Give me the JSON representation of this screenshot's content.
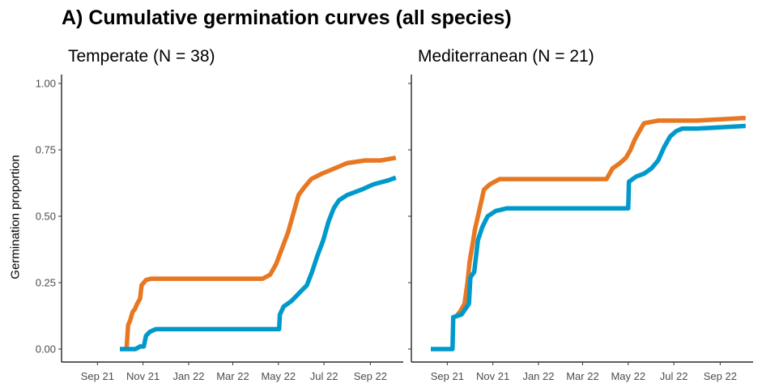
{
  "title": "A) Cumulative germination curves (all species)",
  "chart_data": {
    "type": "line",
    "title": "A) Cumulative germination curves (all species)",
    "ylabel": "Germination proportion",
    "xlabel": "",
    "ylim": [
      0,
      1.0
    ],
    "yticks": [
      0.0,
      0.25,
      0.5,
      0.75,
      1.0
    ],
    "ytick_labels": [
      "0.00",
      "0.25",
      "0.50",
      "0.75",
      "1.00"
    ],
    "xticks": [
      "2021-09-01",
      "2021-11-01",
      "2022-01-01",
      "2022-03-01",
      "2022-05-01",
      "2022-07-01",
      "2022-09-01"
    ],
    "xtick_labels": [
      "Sep 21",
      "Nov 21",
      "Jan 22",
      "Mar 22",
      "May 22",
      "Jul 22",
      "Sep 22"
    ],
    "xlim": [
      "2021-07-15",
      "2022-10-15"
    ],
    "grid": false,
    "series_colors": [
      "#E87722",
      "#0099CC"
    ],
    "panels": [
      {
        "title": "Temperate (N = 38)",
        "series": [
          {
            "color": "#E87722",
            "points": [
              [
                "2021-10-10",
                0.0
              ],
              [
                "2021-10-12",
                0.09
              ],
              [
                "2021-10-15",
                0.11
              ],
              [
                "2021-10-18",
                0.14
              ],
              [
                "2021-10-21",
                0.15
              ],
              [
                "2021-10-24",
                0.17
              ],
              [
                "2021-10-28",
                0.19
              ],
              [
                "2021-10-30",
                0.24
              ],
              [
                "2021-11-05",
                0.26
              ],
              [
                "2021-11-12",
                0.265
              ],
              [
                "2022-04-10",
                0.265
              ],
              [
                "2022-04-20",
                0.28
              ],
              [
                "2022-04-28",
                0.32
              ],
              [
                "2022-05-06",
                0.38
              ],
              [
                "2022-05-14",
                0.44
              ],
              [
                "2022-05-22",
                0.52
              ],
              [
                "2022-05-28",
                0.58
              ],
              [
                "2022-06-05",
                0.61
              ],
              [
                "2022-06-14",
                0.64
              ],
              [
                "2022-06-28",
                0.66
              ],
              [
                "2022-07-15",
                0.68
              ],
              [
                "2022-08-01",
                0.7
              ],
              [
                "2022-08-25",
                0.71
              ],
              [
                "2022-09-15",
                0.71
              ],
              [
                "2022-10-05",
                0.72
              ]
            ]
          },
          {
            "color": "#0099CC",
            "points": [
              [
                "2021-10-01",
                0.0
              ],
              [
                "2021-10-22",
                0.0
              ],
              [
                "2021-10-28",
                0.01
              ],
              [
                "2021-11-02",
                0.01
              ],
              [
                "2021-11-05",
                0.05
              ],
              [
                "2021-11-10",
                0.065
              ],
              [
                "2021-11-18",
                0.075
              ],
              [
                "2022-05-02",
                0.075
              ],
              [
                "2022-05-03",
                0.13
              ],
              [
                "2022-05-08",
                0.16
              ],
              [
                "2022-05-18",
                0.18
              ],
              [
                "2022-05-25",
                0.2
              ],
              [
                "2022-06-01",
                0.22
              ],
              [
                "2022-06-08",
                0.24
              ],
              [
                "2022-06-15",
                0.29
              ],
              [
                "2022-06-22",
                0.35
              ],
              [
                "2022-06-30",
                0.41
              ],
              [
                "2022-07-07",
                0.48
              ],
              [
                "2022-07-14",
                0.53
              ],
              [
                "2022-07-21",
                0.56
              ],
              [
                "2022-08-01",
                0.58
              ],
              [
                "2022-08-20",
                0.6
              ],
              [
                "2022-09-05",
                0.62
              ],
              [
                "2022-09-25",
                0.635
              ],
              [
                "2022-10-05",
                0.645
              ]
            ]
          }
        ]
      },
      {
        "title": "Mediterranean (N = 21)",
        "series": [
          {
            "color": "#E87722",
            "points": [
              [
                "2021-09-12",
                0.12
              ],
              [
                "2021-09-18",
                0.14
              ],
              [
                "2021-09-24",
                0.17
              ],
              [
                "2021-09-28",
                0.25
              ],
              [
                "2021-10-01",
                0.33
              ],
              [
                "2021-10-04",
                0.38
              ],
              [
                "2021-10-08",
                0.45
              ],
              [
                "2021-10-12",
                0.5
              ],
              [
                "2021-10-16",
                0.55
              ],
              [
                "2021-10-20",
                0.6
              ],
              [
                "2021-10-28",
                0.62
              ],
              [
                "2021-11-10",
                0.64
              ],
              [
                "2022-04-02",
                0.64
              ],
              [
                "2022-04-10",
                0.68
              ],
              [
                "2022-04-20",
                0.7
              ],
              [
                "2022-04-28",
                0.72
              ],
              [
                "2022-05-04",
                0.75
              ],
              [
                "2022-05-10",
                0.79
              ],
              [
                "2022-05-16",
                0.82
              ],
              [
                "2022-05-22",
                0.85
              ],
              [
                "2022-06-10",
                0.86
              ],
              [
                "2022-08-01",
                0.86
              ],
              [
                "2022-10-05",
                0.87
              ]
            ]
          },
          {
            "color": "#0099CC",
            "points": [
              [
                "2021-08-10",
                0.0
              ],
              [
                "2021-09-08",
                0.0
              ],
              [
                "2021-09-09",
                0.12
              ],
              [
                "2021-09-20",
                0.13
              ],
              [
                "2021-09-30",
                0.17
              ],
              [
                "2021-10-02",
                0.27
              ],
              [
                "2021-10-07",
                0.29
              ],
              [
                "2021-10-12",
                0.41
              ],
              [
                "2021-10-18",
                0.46
              ],
              [
                "2021-10-25",
                0.5
              ],
              [
                "2021-11-05",
                0.52
              ],
              [
                "2021-11-20",
                0.53
              ],
              [
                "2022-05-01",
                0.53
              ],
              [
                "2022-05-02",
                0.63
              ],
              [
                "2022-05-12",
                0.65
              ],
              [
                "2022-05-22",
                0.66
              ],
              [
                "2022-06-01",
                0.68
              ],
              [
                "2022-06-10",
                0.71
              ],
              [
                "2022-06-18",
                0.76
              ],
              [
                "2022-06-26",
                0.8
              ],
              [
                "2022-07-04",
                0.82
              ],
              [
                "2022-07-12",
                0.83
              ],
              [
                "2022-08-01",
                0.83
              ],
              [
                "2022-10-05",
                0.84
              ]
            ]
          }
        ]
      }
    ]
  }
}
